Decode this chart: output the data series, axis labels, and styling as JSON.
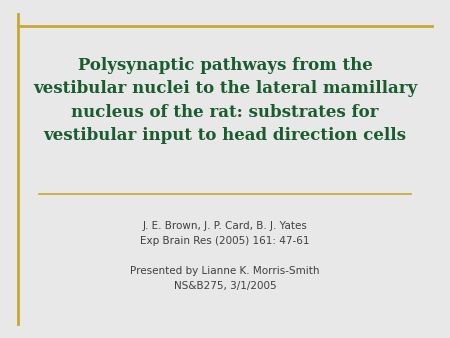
{
  "title_line1": "Polysynaptic pathways from the",
  "title_line2": "vestibular nuclei to the lateral mamillary",
  "title_line3": "nucleus of the rat: substrates for",
  "title_line4": "vestibular input to head direction cells",
  "title_color": "#1a5c2e",
  "author_line": "J. E. Brown, J. P. Card, B. J. Yates",
  "journal_line": "Exp Brain Res (2005) 161: 47-61",
  "presenter_line": "Presented by Lianne K. Morris-Smith",
  "course_line": "NS&B275, 3/1/2005",
  "info_color": "#404040",
  "bg_color": "#ffffff",
  "top_border_color": "#c8a832",
  "left_border_color": "#c8a832",
  "separator_color": "#c8a832",
  "slide_bg": "#e8e8e8"
}
